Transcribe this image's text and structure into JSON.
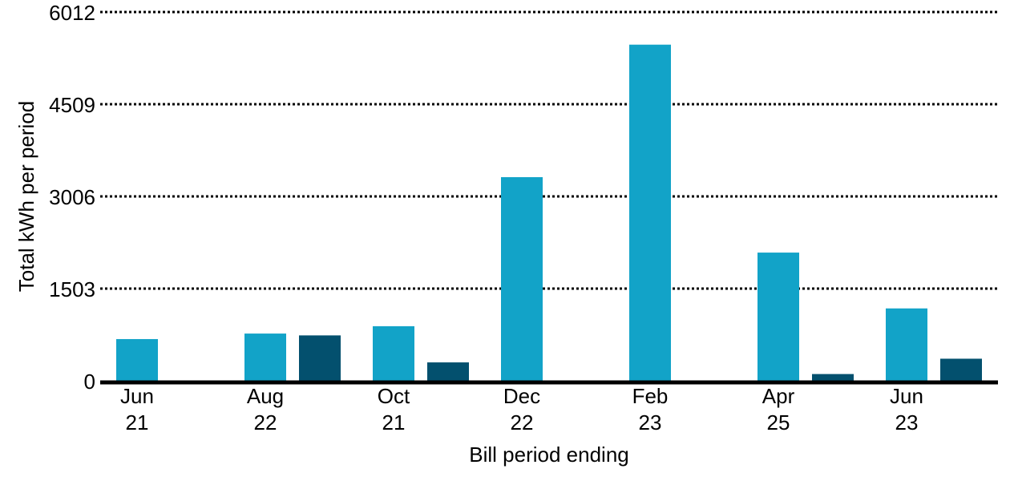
{
  "chart_data": {
    "type": "bar",
    "xlabel": "Bill period ending",
    "ylabel": "Total kWh per period",
    "ylim": [
      0,
      6012
    ],
    "yticks": [
      "0",
      "1503",
      "3006",
      "4509",
      "6012"
    ],
    "grid": "horizontal dotted",
    "categories": [
      [
        "Jun",
        "21"
      ],
      [
        "Aug",
        "22"
      ],
      [
        "Oct",
        "21"
      ],
      [
        "Dec",
        "22"
      ],
      [
        "Feb",
        "23"
      ],
      [
        "Apr",
        "25"
      ],
      [
        "Jun",
        "23"
      ]
    ],
    "series": [
      {
        "color": "#12a3c8",
        "values": [
          680,
          770,
          890,
          3320,
          5480,
          2090,
          1180
        ]
      },
      {
        "color": "#03506e",
        "values": [
          0,
          740,
          300,
          0,
          0,
          110,
          360
        ]
      }
    ]
  }
}
